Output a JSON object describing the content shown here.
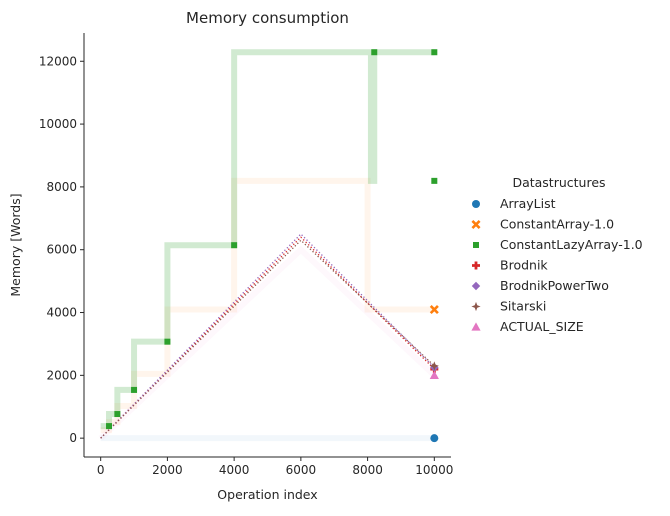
{
  "chart_data": {
    "type": "line",
    "title": "Memory consumption",
    "xlabel": "Operation index",
    "ylabel": "Memory [Words]",
    "xlim": [
      -500,
      10500
    ],
    "ylim": [
      -600,
      12900
    ],
    "xticks": [
      0,
      2000,
      4000,
      6000,
      8000,
      10000
    ],
    "yticks": [
      0,
      2000,
      4000,
      6000,
      8000,
      10000,
      12000
    ],
    "grid": false,
    "legend": {
      "title": "Datastructures",
      "placement": "right"
    },
    "series": [
      {
        "name": "ArrayList",
        "color": "#1f77b4",
        "marker": "circle",
        "style": "solid",
        "opacity": 0.06,
        "x": [
          0,
          10000
        ],
        "y": [
          0,
          0
        ]
      },
      {
        "name": "ConstantArray-1.0",
        "color": "#ff7f0e",
        "marker": "x",
        "style": "dashed",
        "opacity": 0.08,
        "x": [
          0,
          250,
          250,
          500,
          500,
          1000,
          1000,
          2000,
          2000,
          4000,
          4000,
          8000,
          8000,
          10000
        ],
        "y": [
          256,
          256,
          512,
          512,
          1024,
          1024,
          2048,
          2048,
          4096,
          4096,
          8192,
          8192,
          4096,
          4096
        ]
      },
      {
        "name": "ConstantLazyArray-1.0",
        "color": "#2ca02c",
        "marker": "square",
        "style": "dotted",
        "opacity": 0.22,
        "x": [
          0,
          250,
          250,
          500,
          500,
          1000,
          1000,
          2000,
          2000,
          4000,
          4000,
          8200,
          8200,
          8100,
          8100,
          10000
        ],
        "y": [
          384,
          384,
          768,
          768,
          1536,
          1536,
          3072,
          3072,
          6144,
          6144,
          12288,
          12288,
          8192,
          8192,
          12288,
          12288
        ]
      },
      {
        "name": "Brodnik",
        "color": "#d62728",
        "marker": "plus",
        "style": "dotted",
        "opacity": 1,
        "x": [
          0,
          6000,
          10000
        ],
        "y": [
          0,
          6400,
          2200
        ]
      },
      {
        "name": "BrodnikPowerTwo",
        "color": "#9467bd",
        "marker": "diamond",
        "style": "dotted",
        "opacity": 1,
        "x": [
          0,
          6000,
          10000
        ],
        "y": [
          0,
          6500,
          2250
        ]
      },
      {
        "name": "Sitarski",
        "color": "#8c564b",
        "marker": "star",
        "style": "dotted",
        "opacity": 1,
        "x": [
          0,
          6000,
          10000
        ],
        "y": [
          0,
          6300,
          2300
        ]
      },
      {
        "name": "ACTUAL_SIZE",
        "color": "#e377c2",
        "marker": "triangle",
        "style": "solid",
        "opacity": 0.05,
        "x": [
          0,
          6000,
          10000
        ],
        "y": [
          0,
          6000,
          2000
        ]
      }
    ]
  }
}
